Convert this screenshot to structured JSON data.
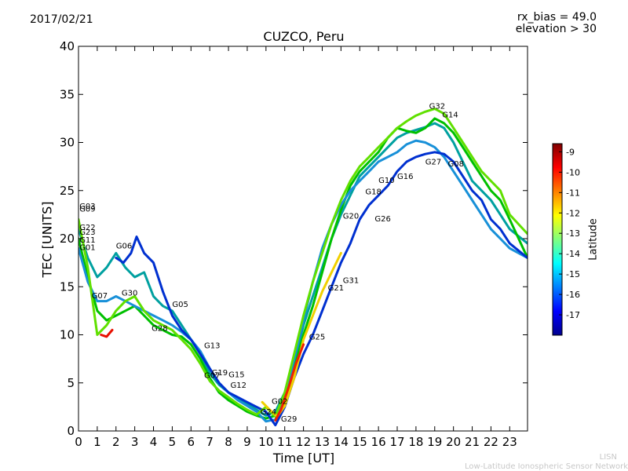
{
  "chart_data": {
    "type": "line",
    "title": "CUZCO, Peru",
    "date": "2017/02/21",
    "info_lines": [
      "rx_bias = 49.0",
      "elevation > 30"
    ],
    "xlabel": "Time [UT]",
    "ylabel": "TEC [UNITS]",
    "xlim": [
      0,
      23.95
    ],
    "ylim": [
      0,
      40
    ],
    "xticks": [
      "0",
      "1",
      "2",
      "3",
      "4",
      "5",
      "6",
      "7",
      "8",
      "9",
      "10",
      "11",
      "12",
      "13",
      "14",
      "15",
      "16",
      "17",
      "18",
      "19",
      "20",
      "21",
      "22",
      "23"
    ],
    "yticks": [
      "0",
      "5",
      "10",
      "15",
      "20",
      "25",
      "30",
      "35",
      "40"
    ],
    "grid": false,
    "colorbar": {
      "label": "Latitude",
      "range": [
        -18,
        -8.6
      ],
      "ticks": [
        "-9",
        "-10",
        "-11",
        "-12",
        "-13",
        "-14",
        "-15",
        "-16",
        "-17"
      ],
      "colormap": "jet"
    },
    "satellite_labels": [
      {
        "text": "G03",
        "x": 0.05,
        "y": 23.1
      },
      {
        "text": "G09",
        "x": 0.05,
        "y": 22.8
      },
      {
        "text": "G22",
        "x": 0.05,
        "y": 20.9
      },
      {
        "text": "G23",
        "x": 0.05,
        "y": 20.4
      },
      {
        "text": "G11",
        "x": 0.05,
        "y": 19.6
      },
      {
        "text": "G01",
        "x": 0.05,
        "y": 18.8
      },
      {
        "text": "G06",
        "x": 2.0,
        "y": 19.0
      },
      {
        "text": "G07",
        "x": 0.7,
        "y": 13.8
      },
      {
        "text": "G30",
        "x": 2.3,
        "y": 14.1
      },
      {
        "text": "G05",
        "x": 5.0,
        "y": 12.9
      },
      {
        "text": "G28",
        "x": 3.9,
        "y": 10.4
      },
      {
        "text": "G13",
        "x": 6.7,
        "y": 8.6
      },
      {
        "text": "G19",
        "x": 7.1,
        "y": 5.8
      },
      {
        "text": "G07",
        "x": 6.7,
        "y": 5.5
      },
      {
        "text": "G15",
        "x": 8.0,
        "y": 5.6
      },
      {
        "text": "G12",
        "x": 8.1,
        "y": 4.5
      },
      {
        "text": "G02",
        "x": 10.3,
        "y": 2.8
      },
      {
        "text": "G24",
        "x": 9.7,
        "y": 1.7
      },
      {
        "text": "G29",
        "x": 10.8,
        "y": 1.0
      },
      {
        "text": "G25",
        "x": 12.3,
        "y": 9.5
      },
      {
        "text": "G21",
        "x": 13.3,
        "y": 14.6
      },
      {
        "text": "G31",
        "x": 14.1,
        "y": 15.4
      },
      {
        "text": "G20",
        "x": 14.1,
        "y": 22.1
      },
      {
        "text": "G26",
        "x": 15.8,
        "y": 21.8
      },
      {
        "text": "G18",
        "x": 15.3,
        "y": 24.6
      },
      {
        "text": "G10",
        "x": 16.0,
        "y": 25.8
      },
      {
        "text": "G16",
        "x": 17.0,
        "y": 26.2
      },
      {
        "text": "G27",
        "x": 18.5,
        "y": 27.7
      },
      {
        "text": "G08",
        "x": 19.7,
        "y": 27.5
      },
      {
        "text": "G32",
        "x": 18.7,
        "y": 33.5
      },
      {
        "text": "G14",
        "x": 19.4,
        "y": 32.6
      }
    ],
    "series": [
      {
        "color": "#00a0a0",
        "x": [
          0,
          0.5,
          1,
          1.5,
          2,
          2.5,
          3,
          3.5,
          4,
          4.5,
          5,
          5.5,
          6,
          6.5,
          7,
          7.5,
          8,
          8.5,
          9,
          9.5,
          10,
          10.5,
          11,
          11.5,
          12,
          12.5,
          13,
          13.5,
          14,
          14.5,
          15,
          15.5,
          16,
          16.5,
          17,
          17.5,
          18,
          18.5,
          19,
          19.5,
          20,
          20.5,
          21,
          21.5,
          22,
          22.5,
          23,
          23.95
        ],
        "y": [
          21,
          18,
          16,
          17,
          18.5,
          17,
          16,
          16.5,
          14,
          13,
          12.5,
          11,
          9.5,
          8,
          6,
          4.8,
          4,
          3.4,
          2.8,
          2.2,
          1.6,
          2,
          4,
          7,
          11,
          14,
          17,
          20,
          22.5,
          24.5,
          26.5,
          27.5,
          28.5,
          29.5,
          30.5,
          31,
          31.3,
          31.6,
          32,
          31.5,
          30,
          28,
          26,
          25,
          24,
          22.5,
          21,
          19.5
        ]
      },
      {
        "color": "#00c000",
        "x": [
          0,
          0.5,
          1,
          1.5,
          2,
          2.5,
          3,
          3.5,
          4,
          4.5,
          5,
          5.5,
          6,
          6.5,
          7,
          7.5,
          8,
          8.5,
          9,
          9.5,
          10,
          10.5,
          11,
          11.5,
          12,
          12.5,
          13,
          13.5,
          14,
          14.5,
          15,
          15.5,
          16,
          16.5,
          17,
          17.5,
          18,
          18.5,
          19,
          19.5,
          20,
          20.5,
          21,
          21.5,
          22,
          22.5,
          23,
          23.95
        ],
        "y": [
          20,
          16,
          12.5,
          11.5,
          12,
          12.5,
          13,
          12,
          11,
          10.5,
          10,
          9.8,
          9,
          7.5,
          5.5,
          4,
          3.2,
          2.6,
          2,
          1.6,
          1.3,
          1.6,
          3,
          6.5,
          10,
          13,
          16.5,
          20,
          23,
          25.5,
          27,
          28,
          29,
          30.5,
          31.5,
          31.2,
          31,
          31.5,
          32.5,
          32,
          31,
          29.5,
          28,
          26.5,
          25,
          24,
          22,
          18
        ]
      },
      {
        "color": "#1890d8",
        "x": [
          0,
          0.5,
          1,
          1.5,
          2,
          2.5,
          3,
          3.5,
          4,
          4.5,
          5,
          5.5,
          6,
          6.5,
          7,
          7.5,
          8,
          8.5,
          9,
          9.5,
          10,
          10.5,
          11,
          11.5,
          12,
          12.5,
          13,
          13.5,
          14,
          14.5,
          15,
          15.5,
          16,
          16.5,
          17,
          17.5,
          18,
          18.5,
          19,
          19.5,
          20,
          20.5,
          21,
          21.5,
          22,
          22.5,
          23,
          23.95
        ],
        "y": [
          19,
          15.5,
          13.5,
          13.5,
          14,
          13.5,
          13,
          12.5,
          12,
          11.5,
          11,
          10.3,
          9.5,
          8.3,
          6.5,
          5,
          4,
          3.2,
          2.6,
          2,
          1,
          1.2,
          3.5,
          7.5,
          11.5,
          15.5,
          19,
          21.5,
          23.5,
          25,
          26,
          27,
          28,
          28.5,
          29,
          29.8,
          30.2,
          30,
          29.5,
          28.5,
          27,
          25.5,
          24,
          22.5,
          21,
          20,
          19,
          18
        ]
      },
      {
        "color": "#0030d0",
        "x": [
          2,
          2.4,
          2.8,
          3.1,
          3.5,
          4,
          4.5,
          5,
          5.5,
          6,
          6.5,
          7,
          7.5,
          8,
          8.5,
          9,
          9.5,
          10,
          10.5,
          11,
          11.5,
          12,
          12.5,
          13,
          13.5,
          14,
          14.5,
          15,
          15.5,
          16,
          16.5,
          17,
          17.5,
          18,
          18.5,
          19,
          19.5,
          20,
          20.5,
          21,
          21.5,
          22,
          22.5,
          23,
          23.95
        ],
        "y": [
          18,
          17.5,
          18.5,
          20.2,
          18.5,
          17.5,
          14.5,
          12,
          10.5,
          9.5,
          8,
          6.5,
          5,
          4,
          3.5,
          3,
          2.5,
          2,
          0.6,
          2.5,
          5.5,
          8,
          10,
          12.5,
          15,
          17.5,
          19.5,
          22,
          23.5,
          24.5,
          25.5,
          27,
          28,
          28.5,
          28.8,
          29,
          28.8,
          28,
          26.5,
          25,
          24,
          22,
          21,
          19.5,
          18
        ]
      },
      {
        "color": "#60e000",
        "x": [
          0,
          0.5,
          1,
          1.5,
          2,
          2.5,
          3,
          3.5,
          4,
          4.5,
          5,
          5.5,
          6,
          6.5,
          7,
          7.5,
          8,
          8.5,
          9,
          9.5,
          10,
          10.5,
          11,
          11.5,
          12,
          12.5,
          13,
          13.5,
          14,
          14.5,
          15,
          15.5,
          16,
          16.5,
          17,
          17.5,
          18,
          18.5,
          19,
          19.5,
          20,
          20.5,
          21,
          21.5,
          22,
          22.5,
          23,
          23.95
        ],
        "y": [
          22,
          17,
          10,
          11,
          12.5,
          13.5,
          14,
          12.5,
          11.5,
          11,
          10.5,
          9.5,
          8.5,
          7,
          5.2,
          4.2,
          3.5,
          2.8,
          2.2,
          1.7,
          2.5,
          1.5,
          4,
          8,
          12,
          15.5,
          18.5,
          21.5,
          24,
          26,
          27.5,
          28.5,
          29.5,
          30.5,
          31.5,
          32.2,
          32.8,
          33.2,
          33.5,
          33,
          31.5,
          30,
          28.5,
          27,
          26,
          25,
          22.5,
          20.5
        ]
      },
      {
        "color": "#f0d000",
        "x": [
          9.8,
          10.2,
          10.6,
          11,
          11.5,
          12,
          12.5,
          13,
          13.5,
          14
        ],
        "y": [
          3,
          2.2,
          1.5,
          2.6,
          5.5,
          9.5,
          12,
          14.5,
          16.5,
          18.5
        ]
      },
      {
        "color": "#f02000",
        "x": [
          10.5,
          10.8,
          11.2,
          11.6,
          12
        ],
        "y": [
          1.1,
          2.2,
          4.5,
          7,
          9
        ]
      },
      {
        "color": "#e81000",
        "x": [
          1.2,
          1.5,
          1.8
        ],
        "y": [
          10,
          9.8,
          10.5
        ]
      }
    ]
  }
}
